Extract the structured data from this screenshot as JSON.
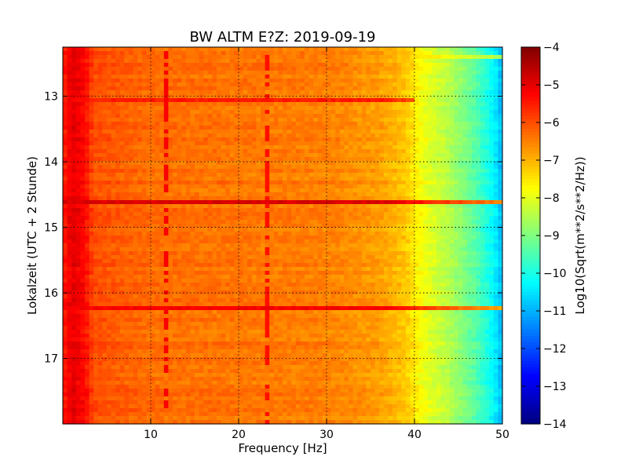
{
  "chart_data": {
    "type": "heatmap",
    "title": "BW ALTM E?Z: 2019-09-19",
    "xlabel": "Frequency [Hz]",
    "ylabel": "Lokalzeit (UTC + 2 Stunde)",
    "xlim": [
      0,
      50
    ],
    "ylim": [
      12.25,
      18.0
    ],
    "y_inverted": true,
    "grid": true,
    "x_ticks": [
      10,
      20,
      30,
      40,
      50
    ],
    "y_ticks": [
      13,
      14,
      15,
      16,
      17
    ],
    "x_tick_labels": [
      "10",
      "20",
      "30",
      "40",
      "50"
    ],
    "y_tick_labels": [
      "13",
      "14",
      "15",
      "16",
      "17"
    ],
    "colormap": "jet",
    "colorbar": {
      "label": "Log10(Sqrt(m**2/s**2/Hz))",
      "min": -14,
      "max": -4,
      "ticks": [
        -4,
        -5,
        -6,
        -7,
        -8,
        -9,
        -10,
        -11,
        -12,
        -13,
        -14
      ],
      "tick_labels": [
        "−4",
        "−5",
        "−6",
        "−7",
        "−8",
        "−9",
        "−10",
        "−11",
        "−12",
        "−13",
        "−14"
      ]
    },
    "frequency_profile": [
      {
        "freq": 0,
        "value": -5.6
      },
      {
        "freq": 1,
        "value": -5.0
      },
      {
        "freq": 2.5,
        "value": -5.3
      },
      {
        "freq": 3.5,
        "value": -6.0
      },
      {
        "freq": 10,
        "value": -6.3
      },
      {
        "freq": 20,
        "value": -6.4
      },
      {
        "freq": 30,
        "value": -6.5
      },
      {
        "freq": 36,
        "value": -6.8
      },
      {
        "freq": 39,
        "value": -7.2
      },
      {
        "freq": 41,
        "value": -7.9
      },
      {
        "freq": 44,
        "value": -8.5
      },
      {
        "freq": 47,
        "value": -9.4
      },
      {
        "freq": 49,
        "value": -10.3
      },
      {
        "freq": 50,
        "value": -11.0
      }
    ],
    "time_bands": [
      {
        "time": 12.4,
        "value": -6.9,
        "freq_max": 50
      },
      {
        "time": 13.05,
        "value": -5.5,
        "freq_max": 40
      },
      {
        "time": 14.62,
        "value": -4.9,
        "freq_max": 50
      },
      {
        "time": 16.22,
        "value": -5.2,
        "freq_max": 50
      }
    ],
    "frequency_lines": [
      {
        "freq": 11.7,
        "value": -5.2
      },
      {
        "freq": 23.4,
        "value": -5.4
      }
    ]
  }
}
